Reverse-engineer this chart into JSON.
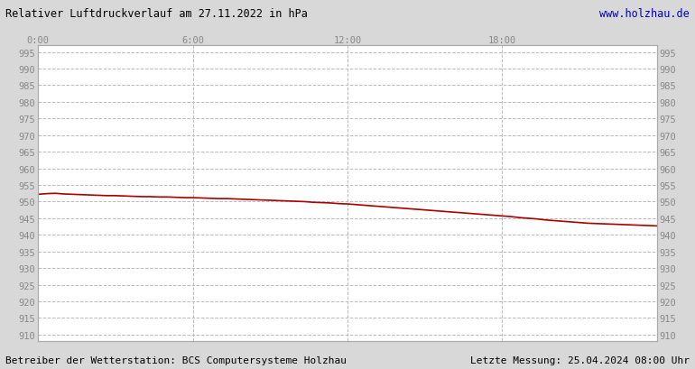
{
  "title": "Relativer Luftdruckverlauf am 27.11.2022 in hPa",
  "title_color": "#000000",
  "watermark": "www.holzhau.de",
  "watermark_color": "#0000bb",
  "footer_left": "Betreiber der Wetterstation: BCS Computersysteme Holzhau",
  "footer_right": "Letzte Messung: 25.04.2024 08:00 Uhr",
  "footer_color": "#000000",
  "background_color": "#d8d8d8",
  "plot_bg_color": "#ffffff",
  "line_color": "#aa0000",
  "line_width": 1.2,
  "grid_color": "#aaaaaa",
  "grid_style": "--",
  "ylim": [
    908,
    997
  ],
  "yticks": [
    910,
    915,
    920,
    925,
    930,
    935,
    940,
    945,
    950,
    955,
    960,
    965,
    970,
    975,
    980,
    985,
    990,
    995
  ],
  "xlim": [
    0,
    1440
  ],
  "xtick_positions": [
    0,
    360,
    720,
    1080
  ],
  "xtick_labels": [
    "0:00",
    "6:00",
    "12:00",
    "18:00"
  ],
  "pressure_data": [
    [
      0,
      952.2
    ],
    [
      20,
      952.4
    ],
    [
      40,
      952.5
    ],
    [
      60,
      952.3
    ],
    [
      80,
      952.2
    ],
    [
      100,
      952.1
    ],
    [
      120,
      952.0
    ],
    [
      140,
      951.9
    ],
    [
      160,
      951.8
    ],
    [
      180,
      951.8
    ],
    [
      200,
      951.7
    ],
    [
      220,
      951.6
    ],
    [
      240,
      951.5
    ],
    [
      260,
      951.5
    ],
    [
      280,
      951.4
    ],
    [
      300,
      951.4
    ],
    [
      320,
      951.3
    ],
    [
      340,
      951.2
    ],
    [
      360,
      951.2
    ],
    [
      380,
      951.1
    ],
    [
      400,
      951.0
    ],
    [
      420,
      950.9
    ],
    [
      440,
      950.9
    ],
    [
      460,
      950.8
    ],
    [
      480,
      950.7
    ],
    [
      500,
      950.6
    ],
    [
      520,
      950.5
    ],
    [
      540,
      950.4
    ],
    [
      560,
      950.3
    ],
    [
      580,
      950.2
    ],
    [
      600,
      950.1
    ],
    [
      620,
      950.0
    ],
    [
      640,
      949.8
    ],
    [
      660,
      949.7
    ],
    [
      680,
      949.6
    ],
    [
      700,
      949.4
    ],
    [
      720,
      949.3
    ],
    [
      740,
      949.1
    ],
    [
      760,
      948.9
    ],
    [
      780,
      948.7
    ],
    [
      800,
      948.5
    ],
    [
      820,
      948.3
    ],
    [
      840,
      948.1
    ],
    [
      860,
      947.9
    ],
    [
      880,
      947.7
    ],
    [
      900,
      947.5
    ],
    [
      920,
      947.3
    ],
    [
      940,
      947.1
    ],
    [
      960,
      946.9
    ],
    [
      980,
      946.7
    ],
    [
      1000,
      946.5
    ],
    [
      1020,
      946.3
    ],
    [
      1040,
      946.1
    ],
    [
      1060,
      945.9
    ],
    [
      1080,
      945.7
    ],
    [
      1100,
      945.5
    ],
    [
      1120,
      945.2
    ],
    [
      1140,
      945.0
    ],
    [
      1160,
      944.8
    ],
    [
      1180,
      944.5
    ],
    [
      1200,
      944.3
    ],
    [
      1220,
      944.1
    ],
    [
      1240,
      943.9
    ],
    [
      1260,
      943.7
    ],
    [
      1280,
      943.5
    ],
    [
      1300,
      943.4
    ],
    [
      1320,
      943.3
    ],
    [
      1340,
      943.2
    ],
    [
      1360,
      943.1
    ],
    [
      1380,
      943.0
    ],
    [
      1400,
      942.9
    ],
    [
      1420,
      942.8
    ],
    [
      1440,
      942.7
    ]
  ]
}
